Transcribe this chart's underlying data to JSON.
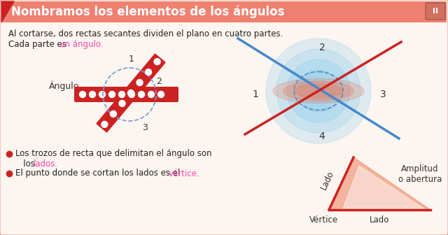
{
  "title": "Nombramos los elementos de los ángulos",
  "title_bg": "#f08070",
  "title_color": "white",
  "bg_color": "#fdf5f0",
  "border_color": "#e08070",
  "text1": "Al cortarse, dos rectas secantes dividen el plano en cuatro partes.",
  "text2_pre": "Cada parte es ",
  "text2_colored": "un ángulo",
  "text2_color": "#ff44aa",
  "text3": "Los trozos de recta que delimitan el ángulo son",
  "text3b_pre": "   los ",
  "text3b_colored": "lados",
  "text3b_color": "#ff44aa",
  "text4_pre": "El punto donde se cortan los lados es el ",
  "text4_colored": "vértice",
  "text4_color": "#ff44aa",
  "label_angulo": "Ángulo",
  "lado_label": "Lado",
  "vertice_label": "Vértice",
  "amplitud_label": "Amplitud\no abertura",
  "red_color": "#cc2222",
  "blue_color": "#4488cc",
  "dashed_circle_color": "#7799cc",
  "magenta_color": "#ff44aa"
}
